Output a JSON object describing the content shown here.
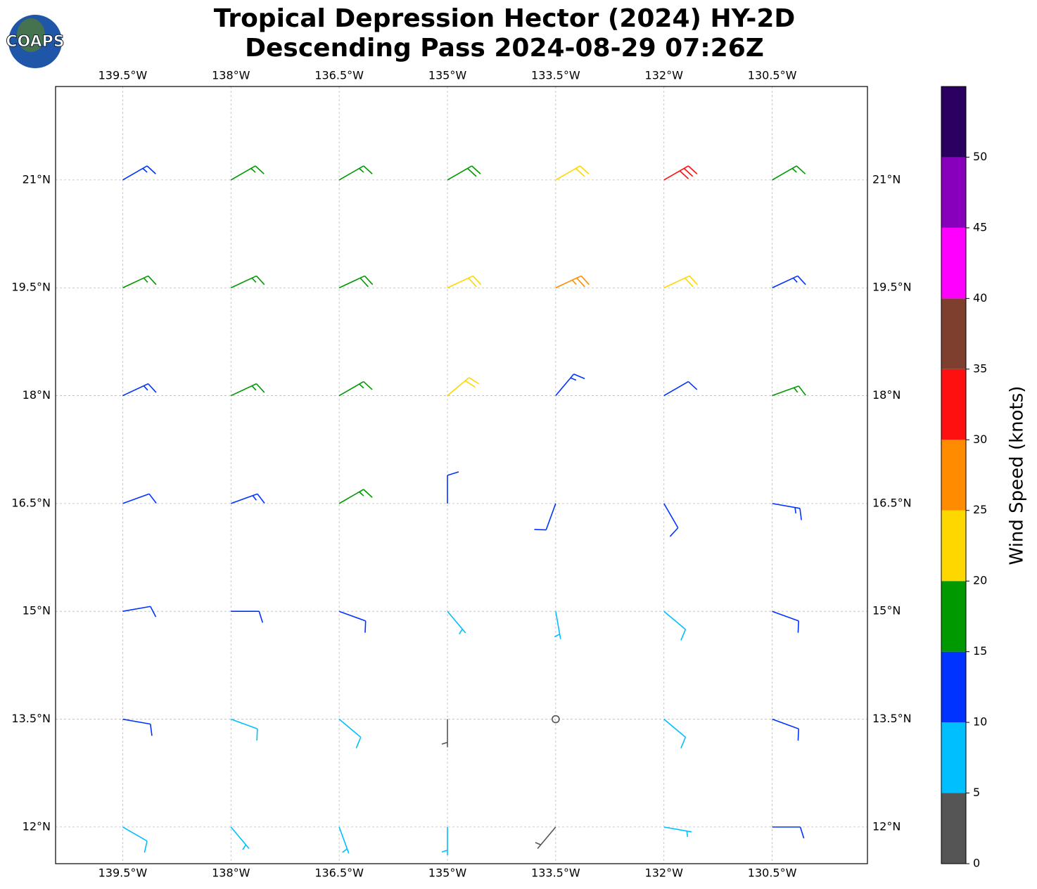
{
  "chart_data": {
    "type": "barbs",
    "logo_text": "COAPS",
    "title": "Tropical Depression Hector (2024) HY-2D",
    "subtitle": "Descending Pass 2024-08-29 07:26Z",
    "xlim": [
      -140.43,
      -129.18
    ],
    "ylim": [
      11.49,
      22.3
    ],
    "xticks": [
      {
        "value": -139.5,
        "label": "139.5°W"
      },
      {
        "value": -138,
        "label": "138°W"
      },
      {
        "value": -136.5,
        "label": "136.5°W"
      },
      {
        "value": -135,
        "label": "135°W"
      },
      {
        "value": -133.5,
        "label": "133.5°W"
      },
      {
        "value": -132,
        "label": "132°W"
      },
      {
        "value": -130.5,
        "label": "130.5°W"
      }
    ],
    "yticks": [
      {
        "value": 12,
        "label": "12°N"
      },
      {
        "value": 13.5,
        "label": "13.5°N"
      },
      {
        "value": 15,
        "label": "15°N"
      },
      {
        "value": 16.5,
        "label": "16.5°N"
      },
      {
        "value": 18,
        "label": "18°N"
      },
      {
        "value": 19.5,
        "label": "19.5°N"
      },
      {
        "value": 21,
        "label": "21°N"
      }
    ],
    "grid": true,
    "colorbar": {
      "label": "Wind Speed (knots)",
      "lim": [
        0,
        55
      ],
      "ticks": [
        0,
        5,
        10,
        15,
        20,
        25,
        30,
        35,
        40,
        45,
        50
      ],
      "bounds": [
        0,
        5,
        10,
        15,
        20,
        25,
        30,
        35,
        40,
        45,
        50,
        55
      ],
      "colors": [
        "#555555",
        "#00bfff",
        "#0033ff",
        "#009900",
        "#ffd700",
        "#ff8c00",
        "#ff1010",
        "#7f3f2f",
        "#ff00ff",
        "#8800bb",
        "#2a0060"
      ]
    },
    "barbs": {
      "lon": [
        -139.5,
        -138,
        -136.5,
        -135,
        -133.5,
        -132,
        -130.5,
        -139.5,
        -138,
        -136.5,
        -135,
        -133.5,
        -132,
        -130.5,
        -139.5,
        -138,
        -136.5,
        -135,
        -133.5,
        -132,
        -130.5,
        -139.5,
        -138,
        -136.5,
        -135,
        -133.5,
        -132,
        -130.5,
        -139.5,
        -138,
        -136.5,
        -135,
        -133.5,
        -132,
        -130.5,
        -139.5,
        -138,
        -136.5,
        -135,
        -133.5,
        -132,
        -130.5,
        -139.5,
        -138,
        -136.5,
        -135,
        -133.5,
        -132,
        -130.5
      ],
      "lat": [
        21,
        21,
        21,
        21,
        21,
        21,
        21,
        19.5,
        19.5,
        19.5,
        19.5,
        19.5,
        19.5,
        19.5,
        18,
        18,
        18,
        18,
        18,
        18,
        18,
        16.5,
        16.5,
        16.5,
        16.5,
        16.5,
        16.5,
        16.5,
        15,
        15,
        15,
        15,
        15,
        15,
        15,
        13.5,
        13.5,
        13.5,
        13.5,
        13.5,
        13.5,
        13.5,
        12,
        12,
        12,
        12,
        12,
        12,
        12
      ],
      "speed": [
        13,
        16,
        17,
        18,
        22,
        30,
        17,
        16,
        17,
        18,
        22,
        27,
        22,
        13,
        13,
        16,
        17,
        21,
        13,
        12,
        15,
        12,
        13,
        16,
        11,
        11,
        12,
        13,
        11,
        12,
        10,
        5,
        7,
        9,
        12,
        10,
        9,
        8,
        4,
        2,
        8,
        11,
        8,
        7,
        7,
        6,
        3,
        7,
        10
      ],
      "direction": [
        60,
        60,
        60,
        60,
        60,
        60,
        60,
        65,
        65,
        65,
        65,
        65,
        65,
        65,
        65,
        65,
        60,
        50,
        40,
        60,
        70,
        70,
        70,
        60,
        0,
        200,
        150,
        100,
        80,
        90,
        110,
        140,
        170,
        130,
        110,
        100,
        110,
        130,
        180,
        200,
        130,
        110,
        120,
        140,
        160,
        180,
        220,
        100,
        90
      ]
    }
  }
}
